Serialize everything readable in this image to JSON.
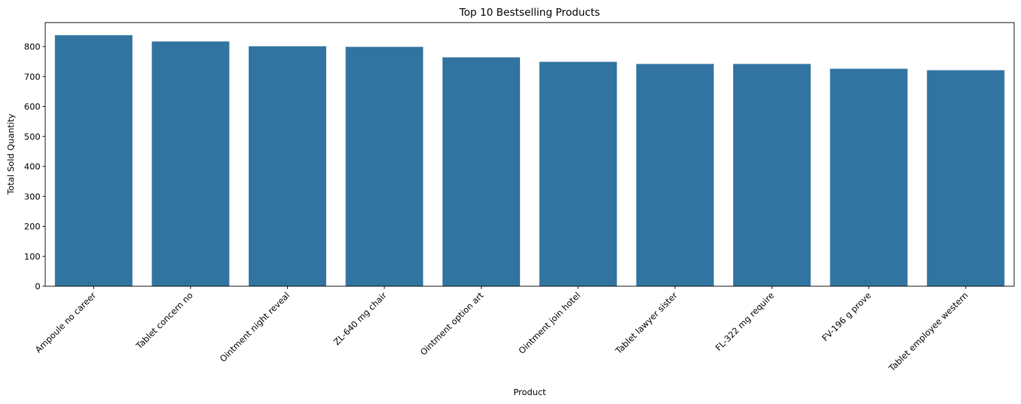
{
  "chart_data": {
    "type": "bar",
    "title": "Top 10 Bestselling Products",
    "xlabel": "Product",
    "ylabel": "Total Sold Quantity",
    "categories": [
      "Ampoule no career",
      "Tablet concern no",
      "Ointment night reveal",
      "ZL-640 mg chair",
      "Ointment option art",
      "Ointment join hotel",
      "Tablet lawyer sister",
      "FL-322 mg require",
      "FV-196 g prove",
      "Tablet employee western"
    ],
    "values": [
      838,
      817,
      801,
      799,
      764,
      749,
      742,
      742,
      726,
      721
    ],
    "ylim": [
      0,
      880
    ],
    "yticks": [
      0,
      100,
      200,
      300,
      400,
      500,
      600,
      700,
      800
    ],
    "grid": false,
    "bar_color": "#3274a1"
  }
}
